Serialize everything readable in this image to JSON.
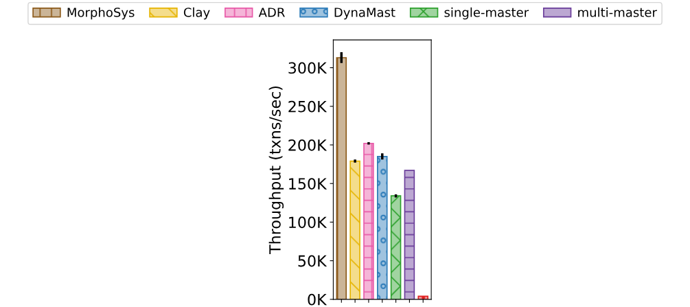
{
  "chart_data": {
    "type": "bar",
    "ylabel": "Throughput (txns/sec)",
    "categories": [
      null,
      null,
      null,
      null,
      null,
      null,
      null
    ],
    "series": [
      {
        "name": "MorphoSys",
        "color": "#8c5a1a",
        "values": [
          313000,
          null,
          null,
          null,
          null,
          null,
          null
        ],
        "errors": [
          7000,
          null,
          null,
          null,
          null,
          null,
          null
        ]
      },
      {
        "name": "Clay",
        "color": "#e6b400",
        "values": [
          null,
          179000,
          null,
          null,
          null,
          null,
          null
        ],
        "errors": [
          null,
          2000,
          null,
          null,
          null,
          null,
          null
        ]
      },
      {
        "name": "ADR",
        "color": "#e85aa8",
        "values": [
          null,
          null,
          202000,
          null,
          null,
          null,
          null
        ],
        "errors": [
          null,
          null,
          1500,
          null,
          null,
          null,
          null
        ]
      },
      {
        "name": "DynaMast",
        "color": "#2a7ab8",
        "values": [
          null,
          null,
          null,
          185000,
          null,
          null,
          null
        ],
        "errors": [
          null,
          null,
          null,
          4000,
          null,
          null,
          null
        ]
      },
      {
        "name": "single-master",
        "color": "#2ca02c",
        "values": [
          null,
          null,
          null,
          null,
          134000,
          null,
          null
        ],
        "errors": [
          null,
          null,
          null,
          null,
          2000,
          null,
          null
        ]
      },
      {
        "name": "multi-master",
        "color": "#6a3d9a",
        "values": [
          null,
          null,
          null,
          null,
          null,
          167000,
          null
        ]
      },
      {
        "color": "#e02020",
        "values": [
          null,
          null,
          null,
          null,
          null,
          null,
          4000
        ]
      }
    ],
    "ylim": [
      0,
      336000
    ],
    "yticks": [
      {
        "value": 0,
        "label": "0K"
      },
      {
        "value": 50000,
        "label": "50K"
      },
      {
        "value": 100000,
        "label": "100K"
      },
      {
        "value": 150000,
        "label": "150K"
      },
      {
        "value": 200000,
        "label": "200K"
      },
      {
        "value": 250000,
        "label": "250K"
      },
      {
        "value": 300000,
        "label": "300K"
      }
    ],
    "tick_labels": "y",
    "legend": "top",
    "grid": false
  }
}
